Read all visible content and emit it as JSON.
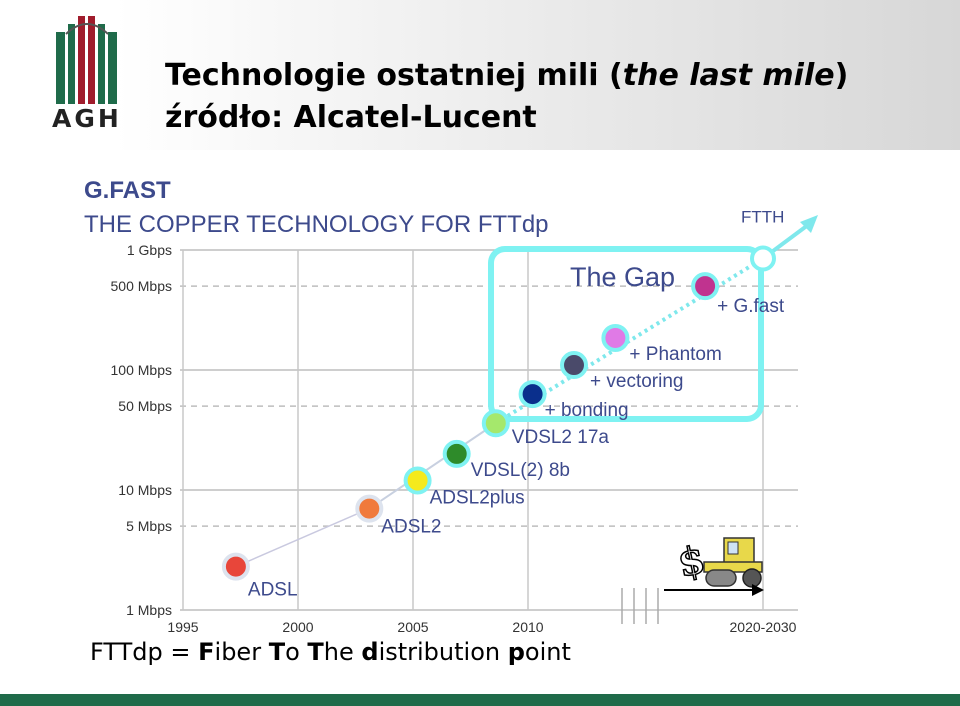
{
  "slide": {
    "title_main": "Technologie ostatniej mili (",
    "title_italic": "the last mile",
    "title_end": ")",
    "subtitle": "źródło: Alcatel-Lucent",
    "logo_text": "AGH",
    "footer": {
      "prefix": "FTTdp = ",
      "parts": [
        {
          "bold": "F",
          "rest": "iber "
        },
        {
          "bold": "T",
          "rest": "o "
        },
        {
          "bold": "T",
          "rest": "he "
        },
        {
          "bold": "d",
          "rest": "istribution "
        },
        {
          "bold": "p",
          "rest": "oint"
        }
      ]
    },
    "colors": {
      "brand_green": "#1f6b4a",
      "logo_red": "#a01c2c",
      "gap_box": "#7ff2f2",
      "trend_line": "#7fe8ec"
    }
  },
  "chart_data": {
    "type": "scatter",
    "title": "G.FAST",
    "subtitle": "THE COPPER TECHNOLOGY FOR FTTdp",
    "y_scale": "log",
    "ylim_mbps": [
      1,
      1000
    ],
    "y_ticks": [
      {
        "label": "1 Gbps",
        "value": 1000
      },
      {
        "label": "500 Mbps",
        "value": 500
      },
      {
        "label": "100 Mbps",
        "value": 100
      },
      {
        "label": "50 Mbps",
        "value": 50
      },
      {
        "label": "10 Mbps",
        "value": 10
      },
      {
        "label": "5 Mbps",
        "value": 5
      },
      {
        "label": "1 Mbps",
        "value": 1
      }
    ],
    "x_ticks": [
      {
        "label": "1995",
        "value": 1995
      },
      {
        "label": "2000",
        "value": 2000
      },
      {
        "label": "2005",
        "value": 2005
      },
      {
        "label": "2010",
        "value": 2010
      },
      {
        "label": "2020-2030",
        "value": 2020
      }
    ],
    "xlim": [
      1994,
      2021
    ],
    "axis_break": true,
    "points": [
      {
        "name": "ADSL",
        "x": 1997.3,
        "y": 2.3,
        "color": "#e8463a",
        "label_pos": "below-right"
      },
      {
        "name": "ADSL2",
        "x": 2003.1,
        "y": 7.0,
        "color": "#f07a3c",
        "label_pos": "below-right"
      },
      {
        "name": "ADSL2plus",
        "x": 2005.2,
        "y": 12.0,
        "color": "#f5ea1d",
        "label_pos": "below-right"
      },
      {
        "name": "VDSL(2) 8b",
        "x": 2006.9,
        "y": 20.0,
        "color": "#2e8b2a",
        "label_pos": "below-right"
      },
      {
        "name": "VDSL2 17a",
        "x": 2008.6,
        "y": 36.0,
        "color": "#a5e86c",
        "label_pos": "below-right"
      },
      {
        "name": "+ bonding",
        "x": 2010.2,
        "y": 63.0,
        "color": "#0a2f8c",
        "label_pos": "below-right"
      },
      {
        "name": "+ vectoring",
        "x": 2012.0,
        "y": 110.0,
        "color": "#4a4a6a",
        "label_pos": "below-right"
      },
      {
        "name": "+ Phantom",
        "x": 2013.8,
        "y": 185.0,
        "color": "#e07ae6",
        "label_pos": "below-right"
      },
      {
        "name": "+ G.fast",
        "x": 2017.7,
        "y": 500.0,
        "color": "#c0338f",
        "label_pos": "below-right"
      },
      {
        "name": "FTTH",
        "x": 2020.0,
        "y": 850.0,
        "color": "#ffffff",
        "label_pos": "above"
      }
    ],
    "annotations": [
      {
        "text": "The Gap",
        "kind": "box"
      }
    ],
    "grid": true,
    "legend": "none"
  }
}
